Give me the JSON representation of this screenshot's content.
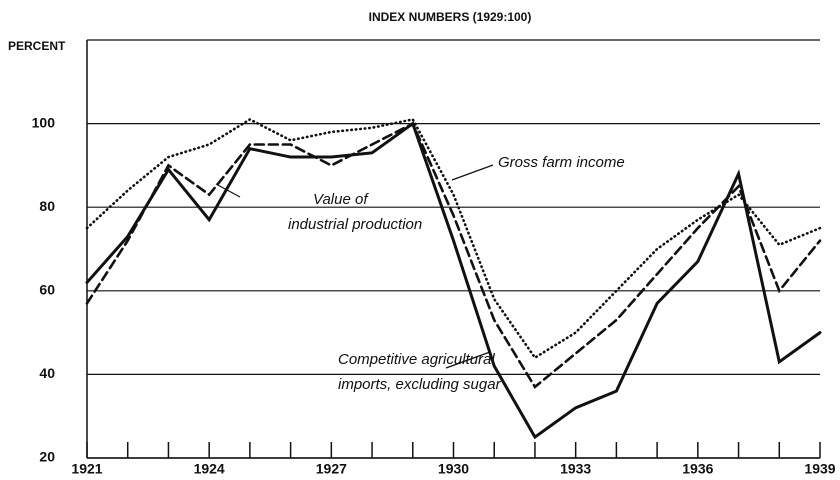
{
  "chart_data": {
    "type": "line",
    "title": "INDEX NUMBERS (1929:100)",
    "ylabel": "PERCENT",
    "x": [
      1921,
      1922,
      1923,
      1924,
      1925,
      1926,
      1927,
      1928,
      1929,
      1930,
      1931,
      1932,
      1933,
      1934,
      1935,
      1936,
      1937,
      1938,
      1939
    ],
    "xlim": [
      1921,
      1939
    ],
    "xticks": [
      1921,
      1924,
      1927,
      1930,
      1933,
      1936,
      1939
    ],
    "xminor_ticks": [
      1922,
      1923,
      1925,
      1926,
      1928,
      1929,
      1931,
      1932,
      1934,
      1935,
      1937,
      1938
    ],
    "ylim": [
      20,
      120
    ],
    "yticks": [
      20,
      40,
      60,
      80,
      100
    ],
    "grid": true,
    "series": [
      {
        "name": "Competitive agricultural imports, excluding sugar",
        "color": "#111111",
        "style": "solid",
        "values": [
          62,
          73,
          89,
          77,
          94,
          92,
          92,
          93,
          100,
          72,
          42,
          25,
          32,
          36,
          57,
          67,
          88,
          43,
          50
        ]
      },
      {
        "name": "Value of industrial production",
        "color": "#111111",
        "style": "dashed",
        "values": [
          57,
          72,
          90,
          83,
          95,
          95,
          90,
          95,
          100,
          78,
          53,
          37,
          45,
          53,
          64,
          75,
          85,
          60,
          72
        ]
      },
      {
        "name": "Gross farm income",
        "color": "#111111",
        "style": "dotted",
        "values": [
          75,
          84,
          92,
          95,
          101,
          96,
          98,
          99,
          101,
          83,
          58,
          44,
          50,
          60,
          70,
          77,
          83,
          71,
          75
        ]
      }
    ],
    "annotations": [
      {
        "lines": [
          "Gross farm income"
        ]
      },
      {
        "lines": [
          "Value of",
          "industrial production"
        ]
      },
      {
        "lines": [
          "Competitive agricultural",
          "imports, excluding sugar"
        ]
      }
    ]
  }
}
